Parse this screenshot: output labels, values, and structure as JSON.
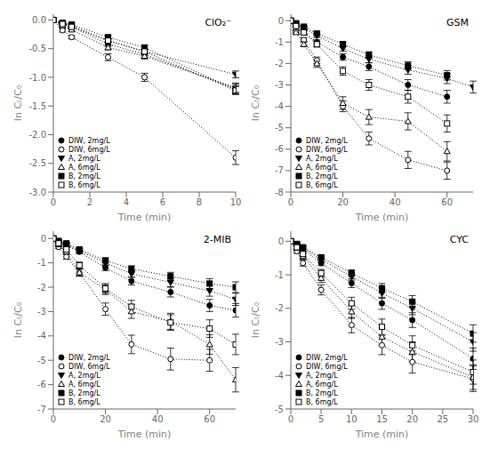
{
  "chart_data": [
    {
      "type": "line",
      "title": "ClO₂⁻",
      "xlabel": "Time (min)",
      "ylabel": "ln Cₜ/C₀",
      "xlim": [
        0,
        10
      ],
      "ylim": [
        -3.0,
        0.1
      ],
      "xticks": [
        0,
        2,
        4,
        6,
        8,
        10
      ],
      "yticks": [
        {
          "value": 0,
          "label": "0.0"
        },
        -0.5,
        {
          "value": -1,
          "label": "-1.0"
        },
        -1.5,
        {
          "value": -2,
          "label": "-2.0"
        },
        -2.5,
        {
          "value": -3,
          "label": "-3.0"
        }
      ],
      "grid": false,
      "legend": "lower left",
      "color": "black",
      "line_style": "dotted",
      "series": [
        {
          "name": "DIW, 2mg/L",
          "marker": "filled_circle",
          "x": [
            0,
            0.5,
            1,
            3,
            5,
            10
          ],
          "values": [
            0,
            -0.07,
            -0.12,
            -0.42,
            -0.6,
            -1.2
          ],
          "yerr": [
            0,
            0.02,
            0.02,
            0.04,
            0.05,
            0.08
          ]
        },
        {
          "name": "DIW, 6mg/L",
          "marker": "open_circle",
          "x": [
            0,
            0.5,
            1,
            3,
            5,
            10
          ],
          "values": [
            0,
            -0.18,
            -0.3,
            -0.65,
            -1.0,
            -2.4
          ],
          "yerr": [
            0,
            0.03,
            0.03,
            0.06,
            0.07,
            0.12
          ]
        },
        {
          "name": "A, 2mg/L",
          "marker": "filled_triangle_down",
          "x": [
            0,
            0.5,
            1,
            3,
            5,
            10
          ],
          "values": [
            0,
            -0.06,
            -0.1,
            -0.36,
            -0.55,
            -0.95
          ],
          "yerr": [
            0,
            0.02,
            0.02,
            0.03,
            0.04,
            0.06
          ]
        },
        {
          "name": "A, 6mg/L",
          "marker": "open_triangle_up",
          "x": [
            0,
            0.5,
            1,
            3,
            5,
            10
          ],
          "values": [
            0,
            -0.1,
            -0.17,
            -0.48,
            -0.63,
            -1.18
          ],
          "yerr": [
            0,
            0.02,
            0.02,
            0.04,
            0.05,
            0.08
          ]
        },
        {
          "name": "B, 2mg/L",
          "marker": "filled_square",
          "x": [
            0,
            0.5,
            1,
            3,
            5,
            10
          ],
          "values": [
            0,
            -0.05,
            -0.08,
            -0.3,
            -0.48,
            -1.22
          ],
          "yerr": [
            0,
            0.02,
            0.02,
            0.03,
            0.04,
            0.07
          ]
        },
        {
          "name": "B, 6mg/L",
          "marker": "open_square",
          "x": [
            0,
            0.5,
            1,
            3,
            5,
            10
          ],
          "values": [
            0,
            -0.07,
            -0.12,
            -0.36,
            -0.55,
            -1.23
          ],
          "yerr": [
            0,
            0.02,
            0.02,
            0.03,
            0.04,
            0.07
          ]
        }
      ]
    },
    {
      "type": "line",
      "title": "GSM",
      "xlabel": "Time (min)",
      "ylabel": "ln Cₜ/C₀",
      "xlim": [
        0,
        70
      ],
      "ylim": [
        -8,
        0.3
      ],
      "xticks": [
        0,
        20,
        40,
        60
      ],
      "yticks": [
        0,
        -1,
        -2,
        -3,
        -4,
        -5,
        -6,
        -7,
        -8
      ],
      "grid": false,
      "legend": "lower left",
      "color": "black",
      "line_style": "dotted",
      "series": [
        {
          "name": "DIW, 2mg/L",
          "marker": "filled_circle",
          "x": [
            0,
            2,
            5,
            10,
            20,
            30,
            45,
            60
          ],
          "values": [
            0,
            -0.25,
            -0.55,
            -1.0,
            -1.7,
            -2.15,
            -3.0,
            -3.55
          ],
          "yerr": [
            0,
            0.05,
            0.08,
            0.1,
            0.15,
            0.18,
            0.25,
            0.3
          ]
        },
        {
          "name": "DIW, 6mg/L",
          "marker": "open_circle",
          "x": [
            0,
            2,
            5,
            10,
            20,
            30,
            45,
            60
          ],
          "values": [
            0,
            -0.5,
            -0.9,
            -1.85,
            -4.0,
            -5.5,
            -6.5,
            -7.0
          ],
          "yerr": [
            0,
            0.07,
            0.1,
            0.15,
            0.25,
            0.3,
            0.4,
            0.4
          ]
        },
        {
          "name": "A, 2mg/L",
          "marker": "filled_triangle_down",
          "x": [
            0,
            2,
            5,
            10,
            20,
            30,
            45,
            60,
            70
          ],
          "values": [
            0,
            -0.15,
            -0.35,
            -0.7,
            -1.3,
            -1.8,
            -2.3,
            -2.7,
            -3.1
          ],
          "yerr": [
            0,
            0.04,
            0.06,
            0.09,
            0.13,
            0.16,
            0.2,
            0.24,
            0.28
          ]
        },
        {
          "name": "A, 6mg/L",
          "marker": "open_triangle_up",
          "x": [
            0,
            2,
            5,
            10,
            20,
            30,
            45,
            60
          ],
          "values": [
            0,
            -0.55,
            -1.1,
            -2.0,
            -3.85,
            -4.5,
            -4.7,
            -6.1
          ],
          "yerr": [
            0,
            0.08,
            0.12,
            0.18,
            0.3,
            0.35,
            0.4,
            0.45
          ]
        },
        {
          "name": "B, 2mg/L",
          "marker": "filled_square",
          "x": [
            0,
            2,
            5,
            10,
            20,
            30,
            45,
            60
          ],
          "values": [
            0,
            -0.12,
            -0.28,
            -0.6,
            -1.1,
            -1.6,
            -2.1,
            -2.55
          ],
          "yerr": [
            0,
            0.04,
            0.06,
            0.08,
            0.12,
            0.15,
            0.18,
            0.22
          ]
        },
        {
          "name": "B, 6mg/L",
          "marker": "open_square",
          "x": [
            0,
            2,
            5,
            10,
            20,
            30,
            45,
            60
          ],
          "values": [
            0,
            -0.25,
            -0.55,
            -1.1,
            -2.35,
            -3.0,
            -3.55,
            -4.8
          ],
          "yerr": [
            0,
            0.06,
            0.09,
            0.13,
            0.2,
            0.25,
            0.3,
            0.4
          ]
        }
      ]
    },
    {
      "type": "line",
      "title": "2-MIB",
      "xlabel": "Time (min)",
      "ylabel": "ln Cₜ/C₀",
      "xlim": [
        0,
        70
      ],
      "ylim": [
        -7.0,
        0.3
      ],
      "xticks": [
        0,
        20,
        40,
        60
      ],
      "yticks": [
        0,
        -1,
        -2,
        -3,
        -4,
        -5,
        -6,
        -7
      ],
      "grid": false,
      "legend": "lower left",
      "color": "black",
      "line_style": "dotted",
      "series": [
        {
          "name": "DIW, 2mg/L",
          "marker": "filled_circle",
          "x": [
            0,
            2,
            5,
            10,
            20,
            30,
            45,
            60,
            70
          ],
          "values": [
            0,
            -0.15,
            -0.3,
            -0.55,
            -1.2,
            -1.75,
            -2.2,
            -2.75,
            -2.95
          ],
          "yerr": [
            0,
            0.04,
            0.06,
            0.08,
            0.12,
            0.16,
            0.2,
            0.25,
            0.28
          ]
        },
        {
          "name": "DIW, 6mg/L",
          "marker": "open_circle",
          "x": [
            0,
            2,
            5,
            10,
            20,
            30,
            45,
            60
          ],
          "values": [
            0,
            -0.35,
            -0.75,
            -1.4,
            -2.9,
            -4.35,
            -4.95,
            -5.0
          ],
          "yerr": [
            0,
            0.07,
            0.1,
            0.15,
            0.25,
            0.38,
            0.45,
            0.45
          ]
        },
        {
          "name": "A, 2mg/L",
          "marker": "filled_triangle_down",
          "x": [
            0,
            2,
            5,
            10,
            20,
            30,
            45,
            60,
            70
          ],
          "values": [
            0,
            -0.12,
            -0.25,
            -0.5,
            -1.0,
            -1.45,
            -1.8,
            -2.15,
            -2.5
          ],
          "yerr": [
            0,
            0.04,
            0.06,
            0.08,
            0.11,
            0.14,
            0.18,
            0.22,
            0.25
          ]
        },
        {
          "name": "A, 6mg/L",
          "marker": "open_triangle_up",
          "x": [
            0,
            2,
            5,
            10,
            20,
            30,
            45,
            60,
            70
          ],
          "values": [
            0,
            -0.25,
            -0.55,
            -1.4,
            -2.1,
            -3.0,
            -3.4,
            -4.35,
            -5.8
          ],
          "yerr": [
            0,
            0.06,
            0.09,
            0.14,
            0.2,
            0.28,
            0.33,
            0.4,
            0.5
          ]
        },
        {
          "name": "B, 2mg/L",
          "marker": "filled_square",
          "x": [
            0,
            2,
            5,
            10,
            20,
            30,
            45,
            60,
            70
          ],
          "values": [
            0,
            -0.1,
            -0.2,
            -0.45,
            -0.9,
            -1.25,
            -1.55,
            -1.85,
            -2.0
          ],
          "yerr": [
            0,
            0.03,
            0.05,
            0.07,
            0.1,
            0.13,
            0.16,
            0.2,
            0.22
          ]
        },
        {
          "name": "B, 6mg/L",
          "marker": "open_square",
          "x": [
            0,
            2,
            5,
            10,
            20,
            30,
            45,
            60,
            70
          ],
          "values": [
            0,
            -0.2,
            -0.45,
            -1.1,
            -2.05,
            -2.8,
            -3.45,
            -3.7,
            -4.35
          ],
          "yerr": [
            0,
            0.05,
            0.08,
            0.13,
            0.2,
            0.26,
            0.32,
            0.36,
            0.42
          ]
        }
      ]
    },
    {
      "type": "line",
      "title": "CYC",
      "xlabel": "Time (min)",
      "ylabel": "ln Cₜ/C₀",
      "xlim": [
        0,
        30
      ],
      "ylim": [
        -5.0,
        0.3
      ],
      "xticks": [
        0,
        5,
        10,
        15,
        20,
        25,
        30
      ],
      "yticks": [
        0,
        -1,
        -2,
        -3,
        -4,
        -5
      ],
      "grid": false,
      "legend": "lower left",
      "color": "black",
      "line_style": "dotted",
      "series": [
        {
          "name": "DIW, 2mg/L",
          "marker": "filled_circle",
          "x": [
            0,
            1,
            2,
            5,
            10,
            15,
            20,
            30
          ],
          "values": [
            0,
            -0.12,
            -0.25,
            -0.65,
            -1.25,
            -1.85,
            -2.35,
            -3.5
          ],
          "yerr": [
            0,
            0.03,
            0.05,
            0.08,
            0.13,
            0.18,
            0.22,
            0.32
          ]
        },
        {
          "name": "DIW, 6mg/L",
          "marker": "open_circle",
          "x": [
            0,
            1,
            2,
            5,
            10,
            15,
            20,
            30
          ],
          "values": [
            0,
            -0.3,
            -0.65,
            -1.45,
            -2.5,
            -3.1,
            -3.6,
            -4.1
          ],
          "yerr": [
            0,
            0.06,
            0.09,
            0.15,
            0.23,
            0.28,
            0.33,
            0.38
          ]
        },
        {
          "name": "A, 2mg/L",
          "marker": "filled_triangle_down",
          "x": [
            0,
            1,
            2,
            5,
            10,
            15,
            20,
            30
          ],
          "values": [
            0,
            -0.1,
            -0.2,
            -0.55,
            -1.05,
            -1.55,
            -2.0,
            -3.0
          ],
          "yerr": [
            0,
            0.03,
            0.04,
            0.07,
            0.11,
            0.15,
            0.19,
            0.28
          ]
        },
        {
          "name": "A, 6mg/L",
          "marker": "open_triangle_up",
          "x": [
            0,
            1,
            2,
            5,
            10,
            15,
            20,
            30
          ],
          "values": [
            0,
            -0.2,
            -0.45,
            -1.1,
            -2.1,
            -2.85,
            -3.3,
            -4.05
          ],
          "yerr": [
            0,
            0.05,
            0.08,
            0.13,
            0.2,
            0.26,
            0.3,
            0.37
          ]
        },
        {
          "name": "B, 2mg/L",
          "marker": "filled_square",
          "x": [
            0,
            1,
            2,
            5,
            10,
            15,
            20,
            30
          ],
          "values": [
            0,
            -0.08,
            -0.18,
            -0.48,
            -0.95,
            -1.4,
            -1.8,
            -2.75
          ],
          "yerr": [
            0,
            0.02,
            0.04,
            0.06,
            0.1,
            0.14,
            0.18,
            0.26
          ]
        },
        {
          "name": "B, 6mg/L",
          "marker": "open_square",
          "x": [
            0,
            1,
            2,
            5,
            10,
            15,
            20,
            30
          ],
          "values": [
            0,
            -0.18,
            -0.38,
            -0.95,
            -1.85,
            -2.55,
            -3.1,
            -3.9
          ],
          "yerr": [
            0,
            0.05,
            0.07,
            0.11,
            0.18,
            0.23,
            0.28,
            0.36
          ]
        }
      ]
    }
  ]
}
